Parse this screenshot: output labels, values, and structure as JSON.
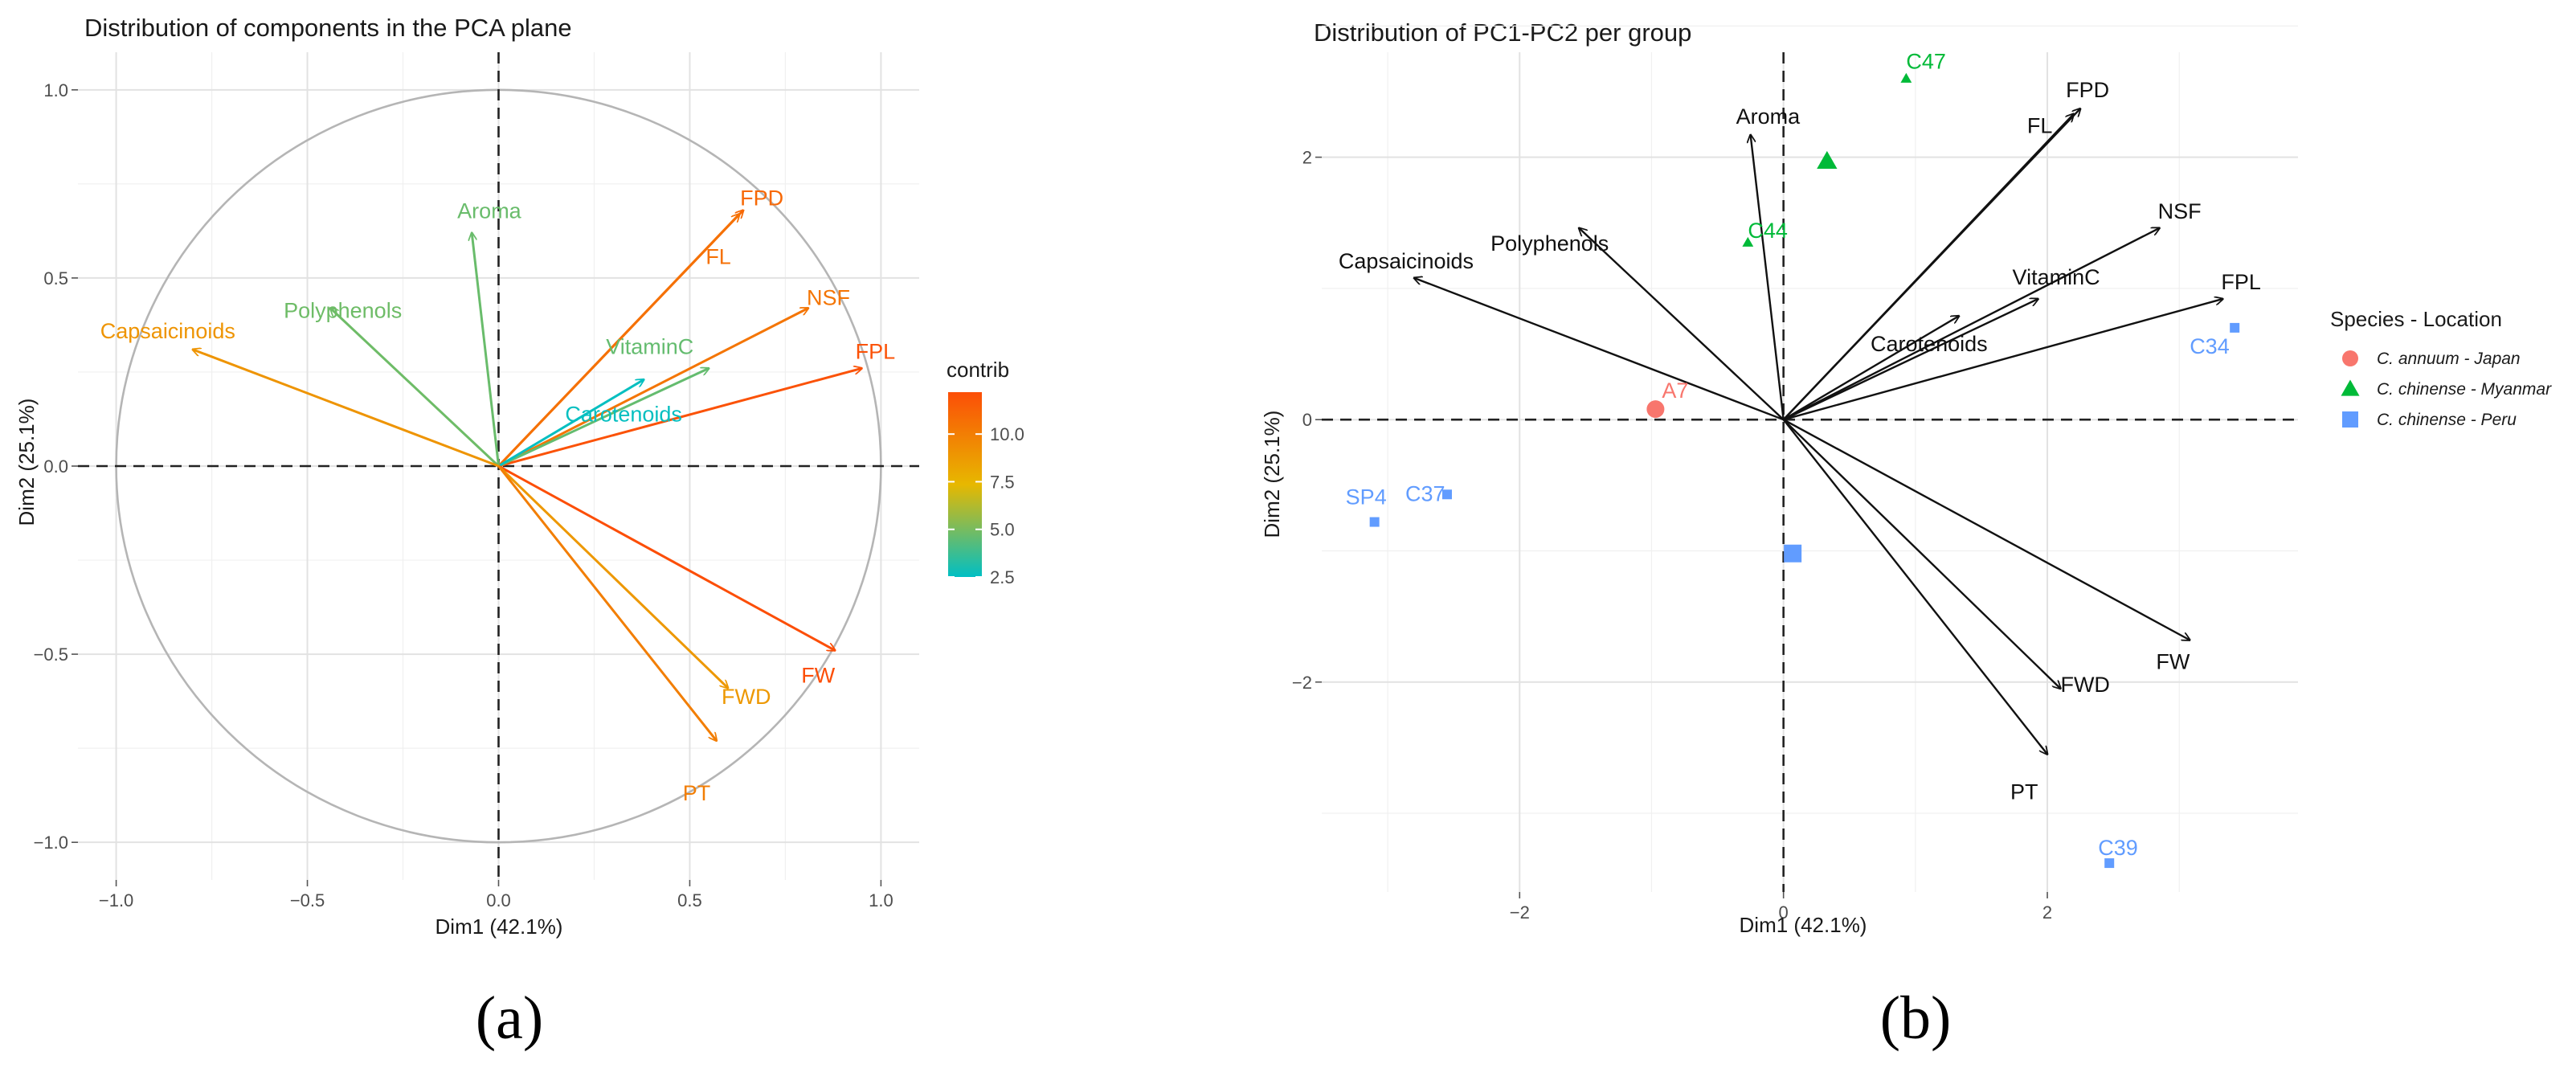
{
  "captions": {
    "a": "(a)",
    "b": "(b)"
  },
  "chart_data": [
    {
      "type": "scatter",
      "subtype": "pca-variable-correlation-circle",
      "title": "Distribution of components in the PCA plane",
      "xlabel": "Dim1 (42.1%)",
      "ylabel": "Dim2 (25.1%)",
      "xlim": [
        -1.1,
        1.1
      ],
      "ylim": [
        -1.1,
        1.1
      ],
      "xticks": [
        -1.0,
        -0.5,
        0.0,
        0.5,
        1.0
      ],
      "xtick_labels": [
        "−1.0",
        "−0.5",
        "0.0",
        "0.5",
        "1.0"
      ],
      "yticks": [
        1.0,
        0.5,
        0.0,
        -0.5,
        -1.0
      ],
      "ytick_labels": [
        "1.0",
        "0.5",
        "0.0",
        "−0.5",
        "−1.0"
      ],
      "grid": true,
      "unit_circle": true,
      "legend": {
        "title": "contrib",
        "placement": "right",
        "type": "gradient",
        "range": [
          2.5,
          12.2
        ],
        "ticks": [
          2.5,
          5.0,
          7.5,
          10.0
        ],
        "tick_labels": [
          "2.5",
          "5.0",
          "7.5",
          "10.0"
        ],
        "colors": [
          "#00bfc4",
          "#e7b800",
          "#fc4e07"
        ]
      },
      "vectors": [
        {
          "name": "FPD",
          "x": 0.64,
          "y": 0.68,
          "contrib": 11.0
        },
        {
          "name": "FL",
          "x": 0.63,
          "y": 0.67,
          "contrib": 10.6
        },
        {
          "name": "NSF",
          "x": 0.81,
          "y": 0.42,
          "contrib": 10.4
        },
        {
          "name": "FPL",
          "x": 0.95,
          "y": 0.26,
          "contrib": 12.0
        },
        {
          "name": "VitaminC",
          "x": 0.55,
          "y": 0.26,
          "contrib": 4.6
        },
        {
          "name": "Carotenoids",
          "x": 0.38,
          "y": 0.23,
          "contrib": 2.6
        },
        {
          "name": "Aroma",
          "x": -0.07,
          "y": 0.62,
          "contrib": 4.7
        },
        {
          "name": "Polyphenols",
          "x": -0.44,
          "y": 0.42,
          "contrib": 4.8
        },
        {
          "name": "Capsaicinoids",
          "x": -0.8,
          "y": 0.31,
          "contrib": 9.0
        },
        {
          "name": "FW",
          "x": 0.88,
          "y": -0.49,
          "contrib": 12.2
        },
        {
          "name": "FWD",
          "x": 0.6,
          "y": -0.59,
          "contrib": 8.8
        },
        {
          "name": "PT",
          "x": 0.57,
          "y": -0.73,
          "contrib": 10.0
        }
      ]
    },
    {
      "type": "scatter",
      "subtype": "pca-biplot",
      "title": "Distribution of PC1-PC2 per group",
      "xlabel": "Dim1 (42.1%)",
      "ylabel": "Dim2 (25.1%)",
      "xlim": [
        -3.5,
        3.9
      ],
      "ylim": [
        -3.6,
        2.8
      ],
      "xticks": [
        -2,
        0,
        2
      ],
      "xtick_labels": [
        "−2",
        "0",
        "2"
      ],
      "yticks": [
        2,
        0,
        -2
      ],
      "ytick_labels": [
        "2",
        "0",
        "−2"
      ],
      "grid": true,
      "legend": {
        "title": "Species - Location",
        "placement": "right",
        "entries": [
          {
            "label": "C. annuum - Japan",
            "color": "#f8766d",
            "shape": "circle"
          },
          {
            "label": "C. chinense - Myanmar",
            "color": "#00ba38",
            "shape": "triangle"
          },
          {
            "label": "C. chinense - Peru",
            "color": "#619cff",
            "shape": "square"
          }
        ]
      },
      "vectors": [
        {
          "name": "FPD",
          "x": 2.25,
          "y": 2.37
        },
        {
          "name": "FL",
          "x": 2.2,
          "y": 2.33
        },
        {
          "name": "NSF",
          "x": 2.85,
          "y": 1.46
        },
        {
          "name": "FPL",
          "x": 3.33,
          "y": 0.92
        },
        {
          "name": "VitaminC",
          "x": 1.93,
          "y": 0.92
        },
        {
          "name": "Carotenoids",
          "x": 1.33,
          "y": 0.79
        },
        {
          "name": "Aroma",
          "x": -0.25,
          "y": 2.17
        },
        {
          "name": "Polyphenols",
          "x": -1.55,
          "y": 1.46
        },
        {
          "name": "Capsaicinoids",
          "x": -2.8,
          "y": 1.08
        },
        {
          "name": "FW",
          "x": 3.08,
          "y": -1.68
        },
        {
          "name": "FWD",
          "x": 2.1,
          "y": -2.05
        },
        {
          "name": "PT",
          "x": 2.0,
          "y": -2.55
        }
      ],
      "points": [
        {
          "label": "A7",
          "x": -0.97,
          "y": 0.08,
          "group": 0
        },
        {
          "label": "C47",
          "x": 0.93,
          "y": 2.6,
          "group": 1
        },
        {
          "label": "C44",
          "x": -0.27,
          "y": 1.35,
          "group": 1
        },
        {
          "label": "C34",
          "x": 3.42,
          "y": 0.7,
          "group": 2
        },
        {
          "label": "SP4",
          "x": -3.1,
          "y": -0.78,
          "group": 2
        },
        {
          "label": "C37",
          "x": -2.55,
          "y": -0.57,
          "group": 2
        },
        {
          "label": "C39",
          "x": 2.47,
          "y": -3.38,
          "group": 2
        }
      ],
      "centroids": [
        {
          "group": 0,
          "x": -0.97,
          "y": 0.08
        },
        {
          "group": 1,
          "x": 0.33,
          "y": 1.97
        },
        {
          "group": 2,
          "x": 0.07,
          "y": -1.02
        }
      ]
    }
  ]
}
